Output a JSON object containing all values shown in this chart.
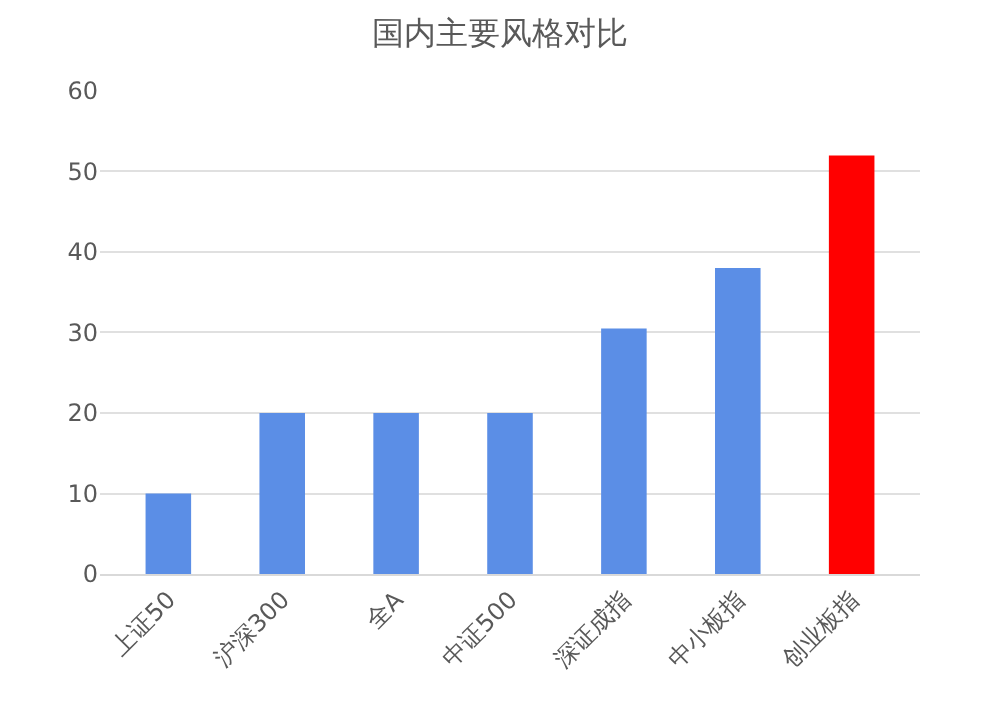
{
  "chart_data": {
    "type": "bar",
    "title": "国内主要风格对比",
    "categories": [
      "上证50",
      "沪深300",
      "全A",
      "中证500",
      "深证成指",
      "中小板指",
      "创业板指"
    ],
    "values": [
      10,
      20,
      20,
      20,
      30.5,
      38,
      52
    ],
    "colors": [
      "#5b8ee6",
      "#5b8ee6",
      "#5b8ee6",
      "#5b8ee6",
      "#5b8ee6",
      "#5b8ee6",
      "#ff0000"
    ],
    "ylim": [
      0,
      60
    ],
    "yticks": [
      0,
      10,
      20,
      30,
      40,
      50,
      60
    ],
    "grid": "y"
  }
}
